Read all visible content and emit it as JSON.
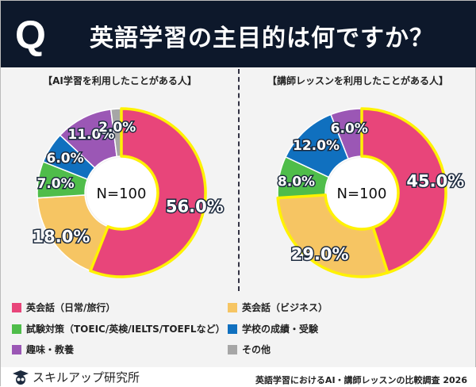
{
  "header": {
    "q": "Q",
    "title": "英語学習の主目的は何ですか？"
  },
  "categories_colors": [
    "#e8457a",
    "#f6c563",
    "#4fbd4a",
    "#1070bf",
    "#9b57b5",
    "#a6a6a6"
  ],
  "highlight_color": "#fff200",
  "chart_data": [
    {
      "type": "pie",
      "donut": true,
      "title": "【AI学習を利用したことがある人】",
      "center_label": "N=100",
      "categories": [
        "英会話（日常/旅行）",
        "英会話（ビジネス）",
        "試験対策（TOEIC/英検/IELTS/TOEFLなど）",
        "学校の成績・受験",
        "趣味・教養",
        "その他"
      ],
      "values": [
        56,
        18,
        7,
        6,
        11,
        2
      ],
      "labels": [
        "56.0%",
        "18.0%",
        "7.0%",
        "6.0%",
        "11.0%",
        "2.0%"
      ],
      "highlighted": [
        0
      ]
    },
    {
      "type": "pie",
      "donut": true,
      "title": "【講師レッスンを利用したことがある人】",
      "center_label": "N=100",
      "categories": [
        "英会話（日常/旅行）",
        "英会話（ビジネス）",
        "試験対策（TOEIC/英検/IELTS/TOEFLなど）",
        "学校の成績・受験",
        "趣味・教養",
        "その他"
      ],
      "values": [
        45,
        29,
        8,
        12,
        6,
        0
      ],
      "labels": [
        "45.0%",
        "29.0%",
        "8.0%",
        "12.0%",
        "6.0%",
        ""
      ],
      "highlighted": [
        0,
        1
      ]
    }
  ],
  "legend": [
    "英会話（日常/旅行）",
    "英会話（ビジネス）",
    "試験対策（TOEIC/英検/IELTS/TOEFLなど）",
    "学校の成績・受験",
    "趣味・教養",
    "その他"
  ],
  "footer": {
    "brand": "スキルアップ研究所",
    "survey": "英語学習におけるAI・講師レッスンの比較調査 2026"
  }
}
